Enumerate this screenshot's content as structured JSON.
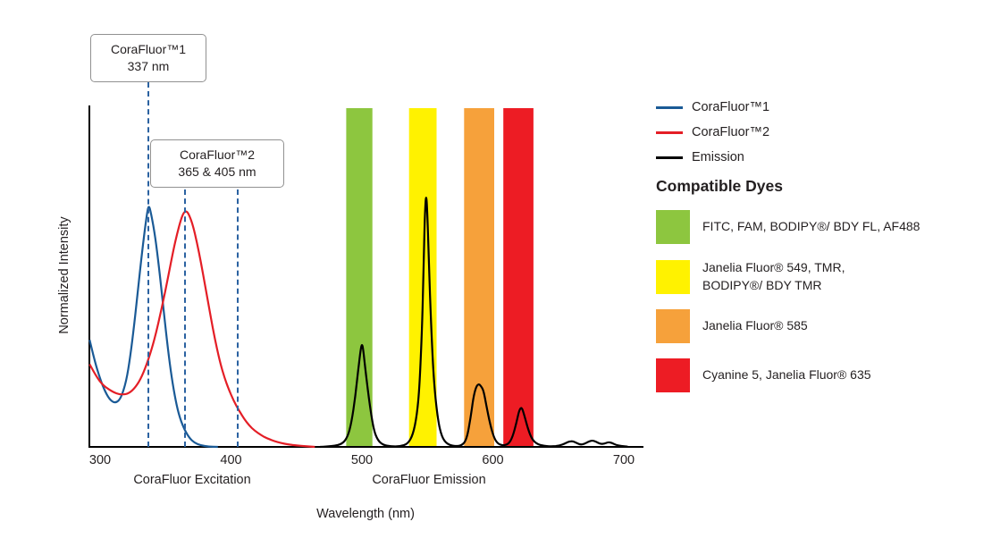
{
  "chart_data": {
    "type": "line",
    "title": "",
    "xlabel": "Wavelength (nm)",
    "ylabel": "Normalized Intensity",
    "xlim": [
      300,
      714
    ],
    "ylim": [
      0,
      1.1
    ],
    "grid": false,
    "x_ticks": [
      300,
      400,
      500,
      600,
      700
    ],
    "x_axis_sublabels": [
      {
        "label": "CoraFluor Excitation",
        "center_nm": 370
      },
      {
        "label": "CoraFluor Emission",
        "center_nm": 551
      }
    ],
    "legend": {
      "position": "top-right",
      "items": [
        {
          "label": "CoraFluor™1",
          "color": "#1a5a96"
        },
        {
          "label": "CoraFluor™2",
          "color": "#e41e26"
        },
        {
          "label": "Emission",
          "color": "#000000"
        }
      ]
    },
    "annotations": [
      {
        "text": [
          "CoraFluor™1",
          "337 nm"
        ],
        "marker_nm": [
          337
        ],
        "color": "#2b62a1"
      },
      {
        "text": [
          "CoraFluor™2",
          "365 & 405 nm"
        ],
        "marker_nm": [
          365,
          405
        ],
        "color": "#2b62a1"
      }
    ],
    "bands_nm": [
      {
        "from": 488,
        "to": 508,
        "color": "#8dc63f"
      },
      {
        "from": 536,
        "to": 557,
        "color": "#fff200"
      },
      {
        "from": 578,
        "to": 601,
        "color": "#f6a13b"
      },
      {
        "from": 608,
        "to": 631,
        "color": "#ed1c24"
      }
    ],
    "series": [
      {
        "name": "CoraFluor™1 excitation",
        "color": "#1a5a96",
        "points": [
          [
            292,
            0.44
          ],
          [
            296,
            0.35
          ],
          [
            300,
            0.28
          ],
          [
            304,
            0.225
          ],
          [
            308,
            0.19
          ],
          [
            312,
            0.18
          ],
          [
            316,
            0.2
          ],
          [
            320,
            0.27
          ],
          [
            323,
            0.37
          ],
          [
            326,
            0.5
          ],
          [
            329,
            0.65
          ],
          [
            332,
            0.8
          ],
          [
            335,
            0.93
          ],
          [
            337,
            1.0
          ],
          [
            339,
            0.96
          ],
          [
            342,
            0.87
          ],
          [
            345,
            0.74
          ],
          [
            348,
            0.59
          ],
          [
            351,
            0.44
          ],
          [
            354,
            0.31
          ],
          [
            357,
            0.21
          ],
          [
            360,
            0.135
          ],
          [
            364,
            0.075
          ],
          [
            368,
            0.038
          ],
          [
            372,
            0.017
          ],
          [
            377,
            0.006
          ],
          [
            383,
            0.001
          ],
          [
            390,
            0
          ]
        ]
      },
      {
        "name": "CoraFluor™2 excitation",
        "color": "#e41e26",
        "points": [
          [
            292,
            0.34
          ],
          [
            297,
            0.29
          ],
          [
            302,
            0.255
          ],
          [
            307,
            0.235
          ],
          [
            312,
            0.22
          ],
          [
            317,
            0.215
          ],
          [
            322,
            0.22
          ],
          [
            327,
            0.245
          ],
          [
            332,
            0.29
          ],
          [
            337,
            0.36
          ],
          [
            342,
            0.45
          ],
          [
            347,
            0.57
          ],
          [
            352,
            0.7
          ],
          [
            356,
            0.81
          ],
          [
            359,
            0.88
          ],
          [
            362,
            0.94
          ],
          [
            364,
            0.965
          ],
          [
            366,
            0.97
          ],
          [
            368,
            0.955
          ],
          [
            371,
            0.91
          ],
          [
            374,
            0.84
          ],
          [
            377,
            0.76
          ],
          [
            380,
            0.67
          ],
          [
            383,
            0.58
          ],
          [
            386,
            0.49
          ],
          [
            389,
            0.41
          ],
          [
            392,
            0.34
          ],
          [
            395,
            0.285
          ],
          [
            398,
            0.24
          ],
          [
            402,
            0.19
          ],
          [
            406,
            0.15
          ],
          [
            410,
            0.115
          ],
          [
            414,
            0.088
          ],
          [
            418,
            0.067
          ],
          [
            423,
            0.048
          ],
          [
            428,
            0.034
          ],
          [
            433,
            0.024
          ],
          [
            438,
            0.016
          ],
          [
            444,
            0.01
          ],
          [
            450,
            0.006
          ],
          [
            457,
            0.003
          ],
          [
            464,
            0
          ]
        ]
      },
      {
        "name": "Emission",
        "color": "#000000",
        "points": [
          [
            468,
            0
          ],
          [
            478,
            0.003
          ],
          [
            485,
            0.012
          ],
          [
            489,
            0.04
          ],
          [
            492,
            0.1
          ],
          [
            495,
            0.21
          ],
          [
            497,
            0.31
          ],
          [
            499,
            0.4
          ],
          [
            500,
            0.425
          ],
          [
            501,
            0.4
          ],
          [
            503,
            0.3
          ],
          [
            506,
            0.17
          ],
          [
            509,
            0.07
          ],
          [
            512,
            0.028
          ],
          [
            516,
            0.008
          ],
          [
            522,
            0.002
          ],
          [
            529,
            0.002
          ],
          [
            535,
            0.012
          ],
          [
            539,
            0.05
          ],
          [
            542,
            0.13
          ],
          [
            544,
            0.25
          ],
          [
            546,
            0.5
          ],
          [
            547,
            0.72
          ],
          [
            548,
            0.95
          ],
          [
            549,
            1.05
          ],
          [
            550,
            0.95
          ],
          [
            551,
            0.78
          ],
          [
            553,
            0.48
          ],
          [
            555,
            0.26
          ],
          [
            558,
            0.11
          ],
          [
            561,
            0.04
          ],
          [
            565,
            0.012
          ],
          [
            570,
            0.003
          ],
          [
            576,
            0.004
          ],
          [
            580,
            0.03
          ],
          [
            583,
            0.12
          ],
          [
            585,
            0.2
          ],
          [
            587,
            0.245
          ],
          [
            589,
            0.26
          ],
          [
            591,
            0.25
          ],
          [
            593,
            0.23
          ],
          [
            595,
            0.17
          ],
          [
            598,
            0.09
          ],
          [
            601,
            0.035
          ],
          [
            604,
            0.012
          ],
          [
            608,
            0.005
          ],
          [
            612,
            0.012
          ],
          [
            615,
            0.04
          ],
          [
            618,
            0.1
          ],
          [
            620,
            0.15
          ],
          [
            622,
            0.165
          ],
          [
            624,
            0.13
          ],
          [
            627,
            0.07
          ],
          [
            630,
            0.03
          ],
          [
            634,
            0.011
          ],
          [
            639,
            0.004
          ],
          [
            645,
            0.002
          ],
          [
            651,
            0.005
          ],
          [
            655,
            0.014
          ],
          [
            658,
            0.022
          ],
          [
            661,
            0.024
          ],
          [
            664,
            0.016
          ],
          [
            667,
            0.009
          ],
          [
            670,
            0.013
          ],
          [
            673,
            0.022
          ],
          [
            676,
            0.027
          ],
          [
            679,
            0.021
          ],
          [
            682,
            0.012
          ],
          [
            685,
            0.013
          ],
          [
            688,
            0.02
          ],
          [
            691,
            0.016
          ],
          [
            694,
            0.008
          ],
          [
            698,
            0.003
          ],
          [
            703,
            0.001
          ]
        ]
      }
    ]
  },
  "side_panel": {
    "title": "Compatible Dyes",
    "items": [
      {
        "color": "#8dc63f",
        "label": [
          "FITC, FAM, BODIPY®/ BDY FL, AF488"
        ]
      },
      {
        "color": "#fff200",
        "label": [
          "Janelia Fluor® 549, TMR,",
          "BODIPY®/ BDY TMR"
        ]
      },
      {
        "color": "#f6a13b",
        "label": [
          "Janelia Fluor® 585"
        ]
      },
      {
        "color": "#ed1c24",
        "label": [
          "Cyanine 5, Janelia Fluor® 635"
        ]
      }
    ]
  }
}
